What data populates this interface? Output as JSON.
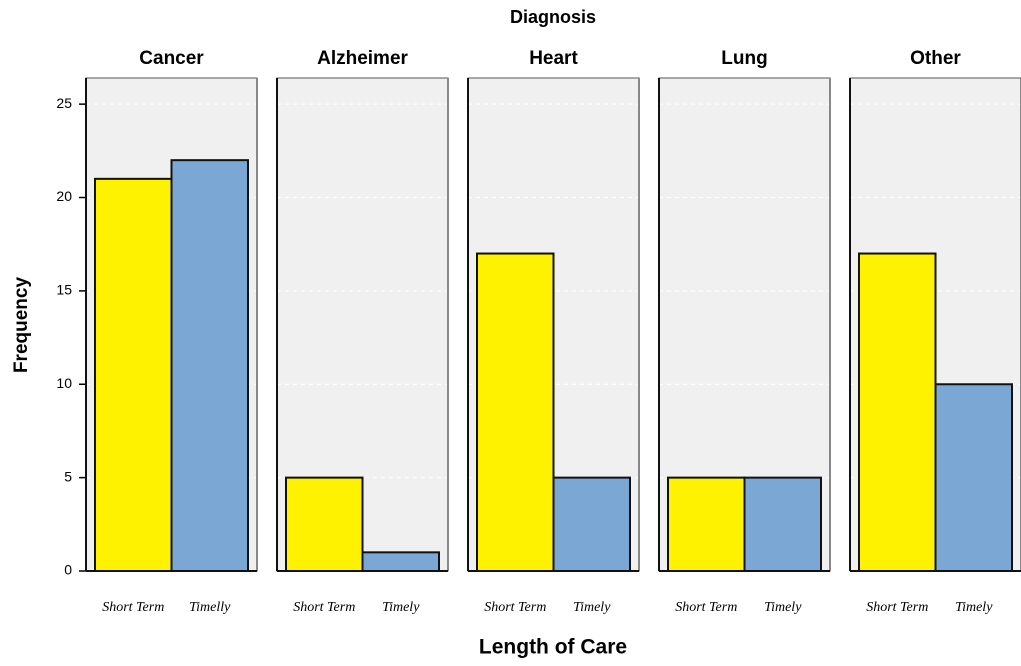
{
  "chart_data": {
    "type": "bar",
    "title": "Diagnosis",
    "x_label": "Length of Care",
    "y_label": "Frequency",
    "colors": [
      "#fff200",
      "#7ba7d5"
    ],
    "ylim": [
      0,
      26.4
    ],
    "yticks": [
      0,
      5,
      10,
      15,
      20,
      25
    ],
    "grid": true,
    "facets": [
      {
        "title": "Cancer",
        "categories": [
          "Short Term",
          "Timelly"
        ],
        "values": [
          21,
          22
        ]
      },
      {
        "title": "Alzheimer",
        "categories": [
          "Short Term",
          "Timely"
        ],
        "values": [
          5,
          1
        ]
      },
      {
        "title": "Heart",
        "categories": [
          "Short Term",
          "Timely"
        ],
        "values": [
          17,
          5
        ]
      },
      {
        "title": "Lung",
        "categories": [
          "Short Term",
          "Timely"
        ],
        "values": [
          5,
          5
        ]
      },
      {
        "title": "Other",
        "categories": [
          "Short Term",
          "Timely"
        ],
        "values": [
          17,
          10
        ]
      }
    ]
  }
}
